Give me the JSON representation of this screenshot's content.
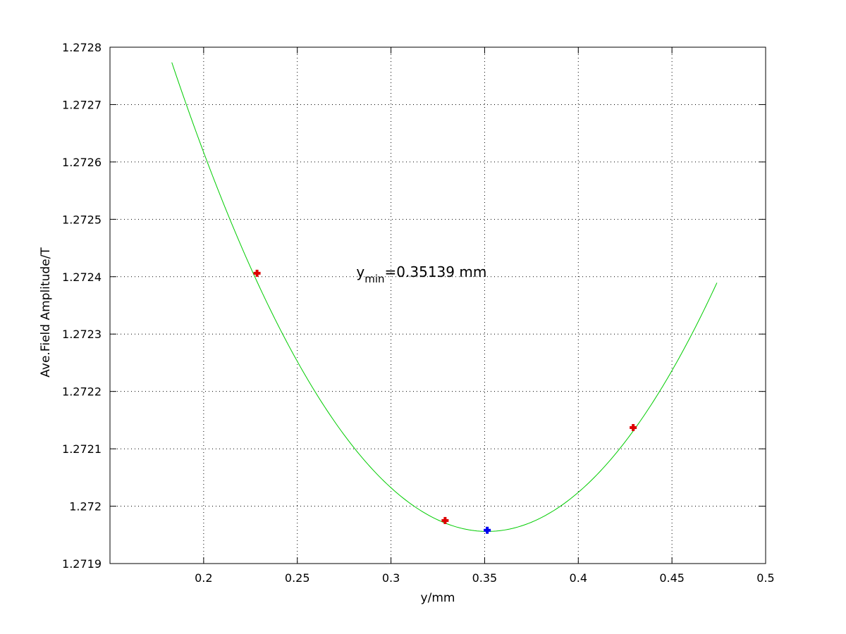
{
  "chart_data": {
    "type": "scatter",
    "title": "",
    "xlabel": "y/mm",
    "ylabel": "Ave.Field Amplitude/T",
    "xlim": [
      0.15,
      0.5
    ],
    "ylim": [
      1.2719,
      1.2728
    ],
    "xticks": [
      "0.2",
      "0.25",
      "0.3",
      "0.35",
      "0.4",
      "0.45",
      "0.5"
    ],
    "yticks": [
      "1.2719",
      "1.272",
      "1.2721",
      "1.2722",
      "1.2723",
      "1.2724",
      "1.2725",
      "1.2726",
      "1.2727",
      "1.2728"
    ],
    "grid": true,
    "grid_style": "dotted",
    "series": [
      {
        "kind": "line",
        "color": "#00cc00",
        "fit": {
          "form": "quadratic",
          "vertex_x": 0.35139,
          "vertex_y": 1.271956,
          "a": 0.02883
        },
        "x_range": [
          0.183,
          0.474
        ]
      },
      {
        "kind": "markers",
        "marker": "plus",
        "color": "#dd0000",
        "x": [
          0.2285,
          0.3289,
          0.4293
        ],
        "y": [
          1.272406,
          1.271975,
          1.272137
        ]
      },
      {
        "kind": "markers",
        "marker": "plus",
        "color": "#0000ee",
        "x": [
          0.35139
        ],
        "y": [
          1.271958
        ]
      }
    ],
    "annotation": {
      "main": "y",
      "subscript": "min",
      "rest": "=0.35139 mm",
      "x": 0.2815,
      "y": 1.2724
    }
  }
}
